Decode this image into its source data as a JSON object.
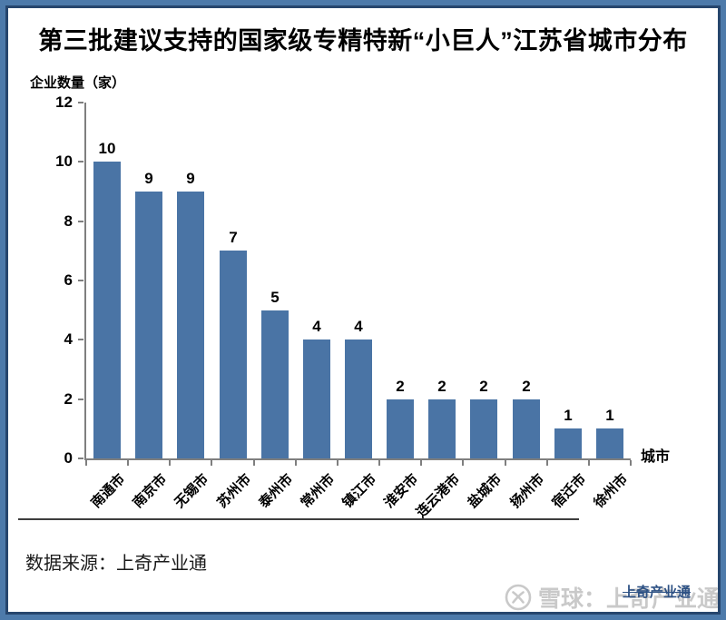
{
  "title": "第三批建议支持的国家级专精特新“小巨人”江苏省城市分布",
  "chart_data": {
    "type": "bar",
    "title": "第三批建议支持的国家级专精特新“小巨人”江苏省城市分布",
    "categories": [
      "南通市",
      "南京市",
      "无锡市",
      "苏州市",
      "泰州市",
      "常州市",
      "镇江市",
      "淮安市",
      "连云港市",
      "盐城市",
      "扬州市",
      "宿迁市",
      "徐州市"
    ],
    "values": [
      10,
      9,
      9,
      7,
      5,
      4,
      4,
      2,
      2,
      2,
      2,
      1,
      1
    ],
    "xlabel": "城市",
    "ylabel": "企业数量（家）",
    "ylim": [
      0,
      12
    ],
    "ytick_step": 2,
    "yticks": [
      0,
      2,
      4,
      6,
      8,
      10,
      12
    ],
    "grid": false,
    "legend": "none",
    "data_labels": true,
    "bar_color": "#4a74a5"
  },
  "footer": {
    "source": "数据来源：上奇产业通"
  },
  "watermarks": {
    "xueqiu": "雪球：上奇产业通",
    "shangqi": "上奇产业通"
  },
  "colors": {
    "bar": "#4a74a5",
    "frame_outer": "#4d7aaa",
    "frame_inner": "#26466d",
    "axis": "#7f7f7f",
    "watermark_gray": "#c9c9c9",
    "watermark_blue": "#2d5184"
  }
}
